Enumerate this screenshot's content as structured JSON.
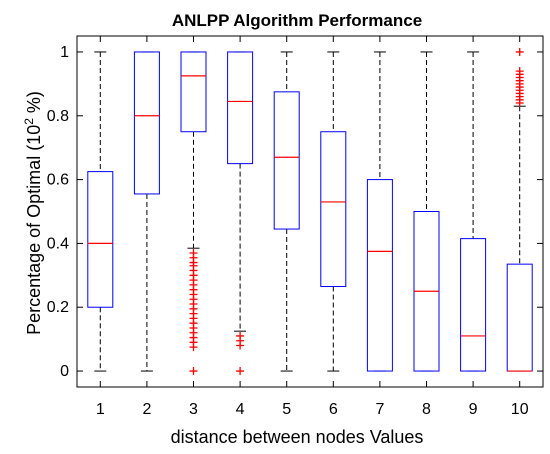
{
  "chart_data": {
    "type": "boxplot",
    "title": "ANLPP Algorithm Performance",
    "xlabel": "distance between nodes Values",
    "ylabel": "Percentage of Optimal (10",
    "ylabel_superscript": "2",
    "ylabel_suffix": " %)",
    "categories": [
      "1",
      "2",
      "3",
      "4",
      "5",
      "6",
      "7",
      "8",
      "9",
      "10"
    ],
    "ylim": [
      -0.05,
      1.05
    ],
    "yticks": [
      0,
      0.2,
      0.4,
      0.6,
      0.8,
      1
    ],
    "ytick_labels": [
      "0",
      "0.2",
      "0.4",
      "0.6",
      "0.8",
      "1"
    ],
    "grid": false,
    "colors": {
      "box": "#0000ff",
      "median": "#ff0000",
      "whisker": "#000000",
      "outlier": "#ff0000",
      "axes": "#000000"
    },
    "boxes": [
      {
        "label": "1",
        "whisker_low": 0,
        "q1": 0.2,
        "median": 0.4,
        "q3": 0.625,
        "whisker_high": 1,
        "outliers": []
      },
      {
        "label": "2",
        "whisker_low": 0,
        "q1": 0.555,
        "median": 0.8,
        "q3": 1.0,
        "whisker_high": 1,
        "outliers": []
      },
      {
        "label": "3",
        "whisker_low": 0.385,
        "q1": 0.75,
        "median": 0.925,
        "q3": 1.0,
        "whisker_high": 1,
        "outliers": [
          0.37,
          0.355,
          0.34,
          0.33,
          0.315,
          0.3,
          0.285,
          0.27,
          0.255,
          0.24,
          0.225,
          0.21,
          0.195,
          0.18,
          0.165,
          0.15,
          0.135,
          0.12,
          0.105,
          0.09,
          0.075,
          0
        ]
      },
      {
        "label": "4",
        "whisker_low": 0.125,
        "q1": 0.65,
        "median": 0.845,
        "q3": 1.0,
        "whisker_high": 1,
        "outliers": [
          0.11,
          0.095,
          0.08,
          0
        ]
      },
      {
        "label": "5",
        "whisker_low": 0,
        "q1": 0.445,
        "median": 0.67,
        "q3": 0.875,
        "whisker_high": 1,
        "outliers": []
      },
      {
        "label": "6",
        "whisker_low": 0,
        "q1": 0.265,
        "median": 0.53,
        "q3": 0.75,
        "whisker_high": 1,
        "outliers": []
      },
      {
        "label": "7",
        "whisker_low": 0,
        "q1": 0.0,
        "median": 0.375,
        "q3": 0.6,
        "whisker_high": 1,
        "outliers": []
      },
      {
        "label": "8",
        "whisker_low": 0,
        "q1": 0.0,
        "median": 0.25,
        "q3": 0.5,
        "whisker_high": 1,
        "outliers": []
      },
      {
        "label": "9",
        "whisker_low": 0,
        "q1": 0.0,
        "median": 0.11,
        "q3": 0.415,
        "whisker_high": 1,
        "outliers": []
      },
      {
        "label": "10",
        "whisker_low": 0,
        "q1": 0.0,
        "median": 0.0,
        "q3": 0.335,
        "whisker_high": 0.83,
        "outliers": [
          1.0,
          0.94,
          0.93,
          0.92,
          0.91,
          0.9,
          0.89,
          0.88,
          0.87,
          0.86,
          0.85,
          0.84
        ]
      }
    ]
  }
}
